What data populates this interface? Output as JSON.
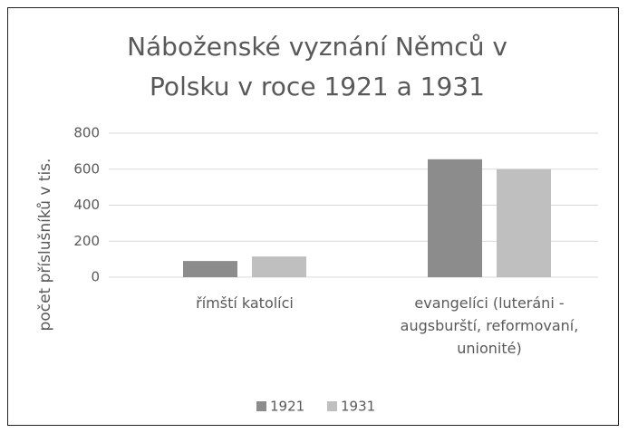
{
  "chart_data": {
    "type": "bar",
    "title": "Náboženské vyznání Němců v Polsku v roce 1921 a 1931",
    "ylabel": "počet příslušníků v tis.",
    "categories": [
      "římští katolíci",
      "evangelíci (luteráni - augsburští, reformovaní, unionité)"
    ],
    "series": [
      {
        "name": "1921",
        "color": "#8c8c8c",
        "values": [
          90,
          655
        ]
      },
      {
        "name": "1931",
        "color": "#bfbfbf",
        "values": [
          115,
          600
        ]
      }
    ],
    "ylim": [
      0,
      800
    ],
    "yticks": [
      0,
      200,
      400,
      600,
      800
    ],
    "grid": true,
    "legend": "bottom"
  }
}
